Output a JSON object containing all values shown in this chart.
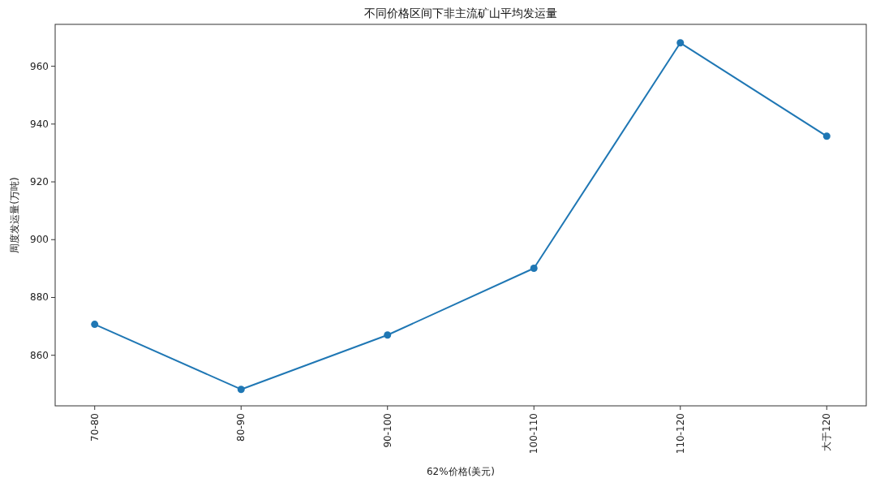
{
  "chart_data": {
    "type": "line",
    "title": "不同价格区间下非主流矿山平均发运量",
    "xlabel": "62%价格(美元)",
    "ylabel": "周度发运量(万吨)",
    "categories": [
      "70-80",
      "80-90",
      "90-100",
      "100-110",
      "110-120",
      "大于120"
    ],
    "series": [
      {
        "color": "#1f77b4",
        "values": [
          870.7,
          848.2,
          867.0,
          890.1,
          968.1,
          935.8
        ]
      }
    ],
    "ylim": [
      842.5,
      974.5
    ],
    "yticks": [
      860,
      880,
      900,
      920,
      940,
      960
    ],
    "marker": "circle",
    "line_style": "solid"
  }
}
